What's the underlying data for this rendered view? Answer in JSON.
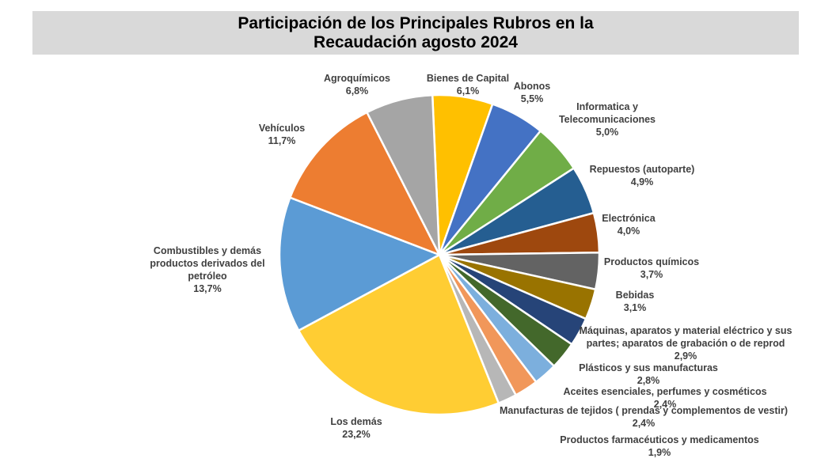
{
  "chart_data": {
    "type": "pie",
    "title_line1": "Participación de los Principales Rubros en la",
    "title_line2": "Recaudación agosto 2024",
    "slices": [
      {
        "label": [
          "Bienes de Capital"
        ],
        "pct": "6,1%",
        "value": 6.1,
        "color": "#ffc000"
      },
      {
        "label": [
          "Abonos"
        ],
        "pct": "5,5%",
        "value": 5.5,
        "color": "#4472c4"
      },
      {
        "label": [
          "Informatica y",
          "Telecomunicaciones"
        ],
        "pct": "5,0%",
        "value": 5.0,
        "color": "#70ad47"
      },
      {
        "label": [
          "Repuestos (autoparte)"
        ],
        "pct": "4,9%",
        "value": 4.9,
        "color": "#255e91"
      },
      {
        "label": [
          "Electrónica"
        ],
        "pct": "4,0%",
        "value": 4.0,
        "color": "#9e480e"
      },
      {
        "label": [
          "Productos químicos"
        ],
        "pct": "3,7%",
        "value": 3.7,
        "color": "#636363"
      },
      {
        "label": [
          "Bebidas"
        ],
        "pct": "3,1%",
        "value": 3.1,
        "color": "#997300"
      },
      {
        "label": [
          "Máquinas, aparatos y material eléctrico y sus",
          "partes; aparatos de grabación o de reprod"
        ],
        "pct": "2,9%",
        "value": 2.9,
        "color": "#264478"
      },
      {
        "label": [
          "Plásticos y sus manufacturas"
        ],
        "pct": "2,8%",
        "value": 2.8,
        "color": "#43682b"
      },
      {
        "label": [
          "Aceites esenciales, perfumes y cosméticos"
        ],
        "pct": "2,4%",
        "value": 2.4,
        "color": "#7cafdd"
      },
      {
        "label": [
          "Manufacturas de tejidos ( prendas y complementos de vestir)"
        ],
        "pct": "2,4%",
        "value": 2.4,
        "color": "#f1975a"
      },
      {
        "label": [
          "Productos farmacéuticos y medicamentos"
        ],
        "pct": "1,9%",
        "value": 1.9,
        "color": "#b7b7b7"
      },
      {
        "label": [
          "Los demás"
        ],
        "pct": "23,2%",
        "value": 23.2,
        "color": "#ffcd33"
      },
      {
        "label": [
          "Combustibles y demás",
          "productos derivados del",
          "petróleo"
        ],
        "pct": "13,7%",
        "value": 13.7,
        "color": "#5b9bd5"
      },
      {
        "label": [
          "Vehículos"
        ],
        "pct": "11,7%",
        "value": 11.7,
        "color": "#ed7d31"
      },
      {
        "label": [
          "Agroquímicos"
        ],
        "pct": "6,8%",
        "value": 6.8,
        "color": "#a5a5a5"
      }
    ]
  }
}
